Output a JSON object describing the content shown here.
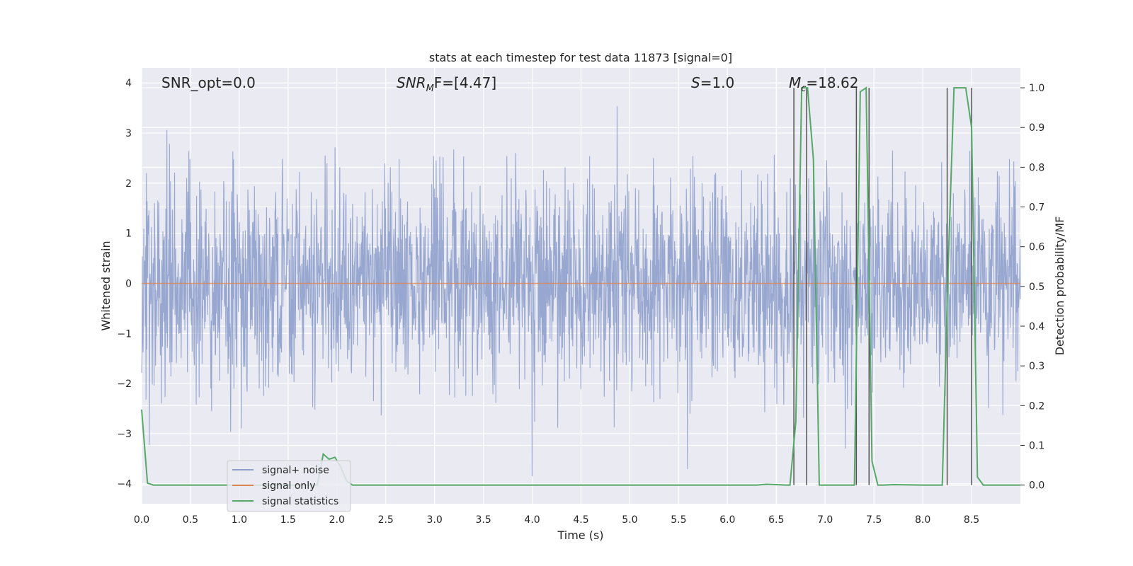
{
  "chart_data": {
    "type": "line",
    "title": "stats at each timestep for test data 11873 [signal=0]",
    "xlabel": "Time (s)",
    "ylabel": "Whitened strain",
    "y2label": "Detection probability/MF",
    "xlim": [
      0.0,
      9.0
    ],
    "ylim": [
      -4.4,
      4.3
    ],
    "y2lim": [
      -0.047,
      1.05
    ],
    "grid": true,
    "legend_position": "lower-left",
    "x_ticks": [
      "0.0",
      "0.5",
      "1.0",
      "1.5",
      "2.0",
      "2.5",
      "3.0",
      "3.5",
      "4.0",
      "4.5",
      "5.0",
      "5.5",
      "6.0",
      "6.5",
      "7.0",
      "7.5",
      "8.0",
      "8.5"
    ],
    "y_ticks": [
      "4",
      "3",
      "2",
      "1",
      "0",
      "−1",
      "−2",
      "−3",
      "−4"
    ],
    "y2_ticks": [
      "1.0",
      "0.9",
      "0.8",
      "0.7",
      "0.6",
      "0.5",
      "0.4",
      "0.3",
      "0.2",
      "0.1",
      "0.0"
    ],
    "annotations": [
      {
        "text": "SNR_opt=0.0",
        "x": 0.2
      },
      {
        "text_main": "SNR",
        "text_sub": "M",
        "text_rest": "F=[4.47]",
        "x": 2.6
      },
      {
        "text_italic": "S",
        "text_rest": "=1.0",
        "x": 5.6
      },
      {
        "text_main": "M",
        "text_sub": "c",
        "text_rest": "=18.62",
        "x": 6.6
      }
    ],
    "series": [
      {
        "name": "signal+ noise",
        "color": "#8ea0cc",
        "kind": "noise",
        "sample_rate": 2048,
        "duration": 9.0,
        "amplitude_std": 1.0
      },
      {
        "name": "signal only",
        "color": "#dd8452",
        "values_constant": 0.0
      },
      {
        "name": "signal statistics",
        "color": "#55a868",
        "axis": "right",
        "x": [
          0.0,
          0.06,
          0.12,
          0.18,
          0.24,
          0.6,
          1.2,
          1.8,
          1.86,
          1.92,
          1.98,
          2.04,
          2.1,
          2.16,
          2.22,
          2.5,
          3.0,
          4.0,
          5.0,
          6.0,
          6.3,
          6.4,
          6.5,
          6.6,
          6.64,
          6.7,
          6.76,
          6.82,
          6.88,
          6.94,
          7.0,
          7.3,
          7.36,
          7.42,
          7.48,
          7.54,
          7.6,
          7.7,
          8.0,
          8.2,
          8.26,
          8.32,
          8.38,
          8.44,
          8.5,
          8.56,
          8.62,
          8.7,
          9.0
        ],
        "y": [
          0.19,
          0.005,
          0.0,
          0.0,
          0.0,
          0.0,
          0.0,
          0.0,
          0.078,
          0.065,
          0.07,
          0.045,
          0.01,
          0.0,
          0.0,
          0.0,
          0.0,
          0.0,
          0.0,
          0.0,
          0.0,
          0.002,
          0.001,
          0.0,
          0.0,
          0.16,
          1.0,
          1.0,
          0.82,
          0.0,
          0.0,
          0.0,
          0.99,
          1.0,
          0.06,
          0.0,
          0.0,
          0.001,
          0.0,
          0.0,
          0.55,
          1.0,
          1.0,
          1.0,
          0.9,
          0.02,
          0.0,
          0.0,
          0.0
        ]
      }
    ],
    "vertical_lines_x": [
      6.68,
      6.81,
      7.32,
      7.45,
      8.25,
      8.5
    ]
  },
  "legend": {
    "items": [
      {
        "label": "signal+ noise",
        "color": "#8ea0cc"
      },
      {
        "label": "signal only",
        "color": "#dd8452"
      },
      {
        "label": "signal statistics",
        "color": "#55a868"
      }
    ]
  }
}
